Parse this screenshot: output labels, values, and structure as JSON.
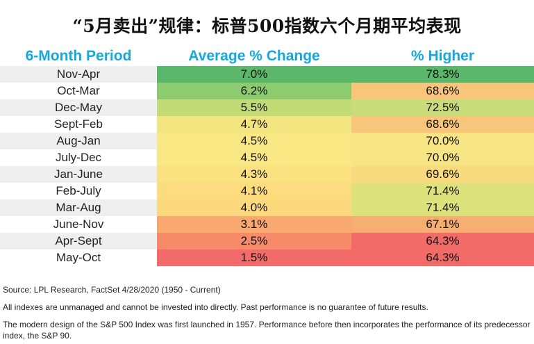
{
  "title": "“5月卖出”规律：标普500指数六个月期平均表现",
  "chart_data": {
    "type": "table",
    "columns": [
      "6-Month Period",
      "Average % Change",
      "% Higher"
    ],
    "rows": [
      {
        "period": "Nov-Apr",
        "avg": "7.0%",
        "higher": "78.3%",
        "avg_color": "#5bb86a",
        "higher_color": "#5bb86a"
      },
      {
        "period": "Oct-Mar",
        "avg": "6.2%",
        "higher": "68.6%",
        "avg_color": "#8ccb6e",
        "higher_color": "#f9c57a"
      },
      {
        "period": "Dec-May",
        "avg": "5.5%",
        "higher": "72.5%",
        "avg_color": "#c3db77",
        "higher_color": "#c8dd79"
      },
      {
        "period": "Sept-Feb",
        "avg": "4.7%",
        "higher": "68.6%",
        "avg_color": "#f2e47f",
        "higher_color": "#f9c57a"
      },
      {
        "period": "Aug-Jan",
        "avg": "4.5%",
        "higher": "70.0%",
        "avg_color": "#f8e782",
        "higher_color": "#f7e482"
      },
      {
        "period": "July-Dec",
        "avg": "4.5%",
        "higher": "70.0%",
        "avg_color": "#f8e782",
        "higher_color": "#f7e482"
      },
      {
        "period": "Jan-June",
        "avg": "4.3%",
        "higher": "69.6%",
        "avg_color": "#fbe17f",
        "higher_color": "#f9da7e"
      },
      {
        "period": "Feb-July",
        "avg": "4.1%",
        "higher": "71.4%",
        "avg_color": "#fcdc7e",
        "higher_color": "#dde27d"
      },
      {
        "period": "Mar-Aug",
        "avg": "4.0%",
        "higher": "71.4%",
        "avg_color": "#fcd97d",
        "higher_color": "#dde27d"
      },
      {
        "period": "June-Nov",
        "avg": "3.1%",
        "higher": "67.1%",
        "avg_color": "#f9a86f",
        "higher_color": "#f6ae72"
      },
      {
        "period": "Apr-Sept",
        "avg": "2.5%",
        "higher": "64.3%",
        "avg_color": "#f68a69",
        "higher_color": "#f26b68"
      },
      {
        "period": "May-Oct",
        "avg": "1.5%",
        "higher": "64.3%",
        "avg_color": "#f26b68",
        "higher_color": "#f26b68"
      }
    ]
  },
  "footnotes": [
    "Source: LPL Research, FactSet 4/28/2020 (1950 - Current)",
    "All indexes are unmanaged and cannot be invested into directly. Past performance is no guarantee of future results.",
    "The modern design of the S&P 500 Index was first launched in 1957. Performance before then incorporates the performance of its predecessor index, the S&P 90."
  ],
  "colors": {
    "header_text": "#14a8dc",
    "stripe": "#efefef"
  }
}
